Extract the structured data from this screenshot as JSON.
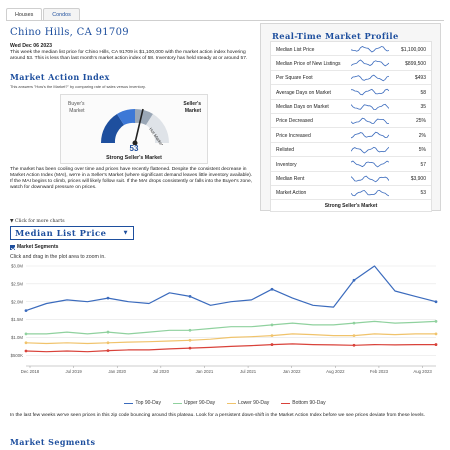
{
  "tabs": [
    {
      "label": "Houses",
      "active": true
    },
    {
      "label": "Condos",
      "active": false
    }
  ],
  "page_title": "Chino Hills, CA 91709",
  "date": "Wed Dec 06 2023",
  "intro": "This week the median list price for Chino Hills, CA 91709 is $1,100,000 with the market action index hovering around 53. This is less than last month's market action index of 58. Inventory has held steady at or around 57.",
  "market_action": {
    "title": "Market Action Index",
    "subtitle": "This answers \"How's the Market?\" by comparing rate of sales versus inventory.",
    "buyers_label": [
      "Buyer's",
      "Market"
    ],
    "sellers_label": [
      "Seller's",
      "Market"
    ],
    "needle_label": "Hot Market",
    "value": "53",
    "caption": "Strong Seller's Market"
  },
  "body1": "The market has been cooling over time and prices have recently flattened. Despite the consistent decrease in Market Action Index (MAI), we're in a Seller's Market (where significant demand leaves little inventory available). If the MAI begins to climb, prices will likely follow suit. If the MAI drops consistently or falls into the Buyer's zone, watch for downward pressure on prices.",
  "profile": {
    "title": "Real-Time Market Profile",
    "rows": [
      {
        "label": "Median List Price",
        "value": "$1,100,000"
      },
      {
        "label": "Median Price of New Listings",
        "value": "$899,500"
      },
      {
        "label": "Per Square Foot",
        "value": "$493"
      },
      {
        "label": "Average Days on Market",
        "value": "58"
      },
      {
        "label": "Median Days on Market",
        "value": "35"
      },
      {
        "label": "Price Decreased",
        "value": "25%"
      },
      {
        "label": "Price Increased",
        "value": "2%"
      },
      {
        "label": "Relisted",
        "value": "5%"
      },
      {
        "label": "Inventory",
        "value": "57"
      },
      {
        "label": "Median Rent",
        "value": "$3,900"
      },
      {
        "label": "Market Action",
        "value": "53"
      }
    ],
    "footer": "Strong Seller's Market"
  },
  "click_more": "Click for more charts",
  "chart_selector": "Median List Price",
  "segments_checkbox": "Market Segments",
  "chart_hint": "Click and drag in the plot area to zoom in.",
  "colors": {
    "accent": "#1e4f9e",
    "top": "#3b6bbd",
    "upper": "#8fd19e",
    "lower": "#f0c36b",
    "bottom": "#d9423a"
  },
  "chart_data": {
    "type": "line",
    "x": [
      "Dec 2018",
      "Mar 2019",
      "Jun 2019",
      "Sep 2019",
      "Dec 2019",
      "Mar 2020",
      "Jun 2020",
      "Sep 2020",
      "Dec 2020",
      "Mar 2021",
      "Jun 2021",
      "Sep 2021",
      "Dec 2021",
      "Mar 2022",
      "Jun 2022",
      "Sep 2022",
      "Dec 2022",
      "Mar 2023",
      "Jun 2023",
      "Sep 2023",
      "Dec 2023"
    ],
    "x_tick_labels": [
      "Dec 2018",
      "Jul 2019",
      "Jan 2020",
      "Jul 2020",
      "Jan 2021",
      "Jul 2021",
      "Jan 2022",
      "Aug 2022",
      "Feb 2023",
      "Aug 2023"
    ],
    "y_tick_labels": [
      "$500K",
      "$1.0M",
      "$1.5M",
      "$2.0M",
      "$2.5M",
      "$3.0M"
    ],
    "ylim": [
      200000,
      3000000
    ],
    "series": [
      {
        "name": "Top 90-Day",
        "values": [
          1750000,
          1950000,
          2050000,
          2000000,
          2100000,
          2000000,
          1950000,
          2250000,
          2150000,
          1900000,
          2000000,
          2050000,
          2350000,
          2100000,
          1900000,
          1850000,
          2600000,
          3000000,
          2300000,
          2150000,
          2000000
        ]
      },
      {
        "name": "Upper 90-Day",
        "values": [
          1100000,
          1100000,
          1150000,
          1100000,
          1150000,
          1100000,
          1150000,
          1200000,
          1200000,
          1250000,
          1300000,
          1300000,
          1350000,
          1400000,
          1350000,
          1350000,
          1400000,
          1450000,
          1400000,
          1420000,
          1450000
        ]
      },
      {
        "name": "Lower 90-Day",
        "values": [
          850000,
          830000,
          850000,
          830000,
          850000,
          870000,
          880000,
          900000,
          920000,
          950000,
          1000000,
          1020000,
          1050000,
          1100000,
          1080000,
          1050000,
          1050000,
          1100000,
          1080000,
          1100000,
          1100000
        ]
      },
      {
        "name": "Bottom 90-Day",
        "values": [
          620000,
          600000,
          620000,
          600000,
          630000,
          650000,
          650000,
          680000,
          700000,
          720000,
          750000,
          770000,
          800000,
          820000,
          800000,
          790000,
          780000,
          800000,
          790000,
          800000,
          800000
        ]
      }
    ]
  },
  "body2": "In the last few weeks we've seen prices in this zip code bouncing around this plateau. Look for a persistent down-shift in the Market Action Index before we see prices deviate from these levels.",
  "market_segments_title": "Market Segments"
}
